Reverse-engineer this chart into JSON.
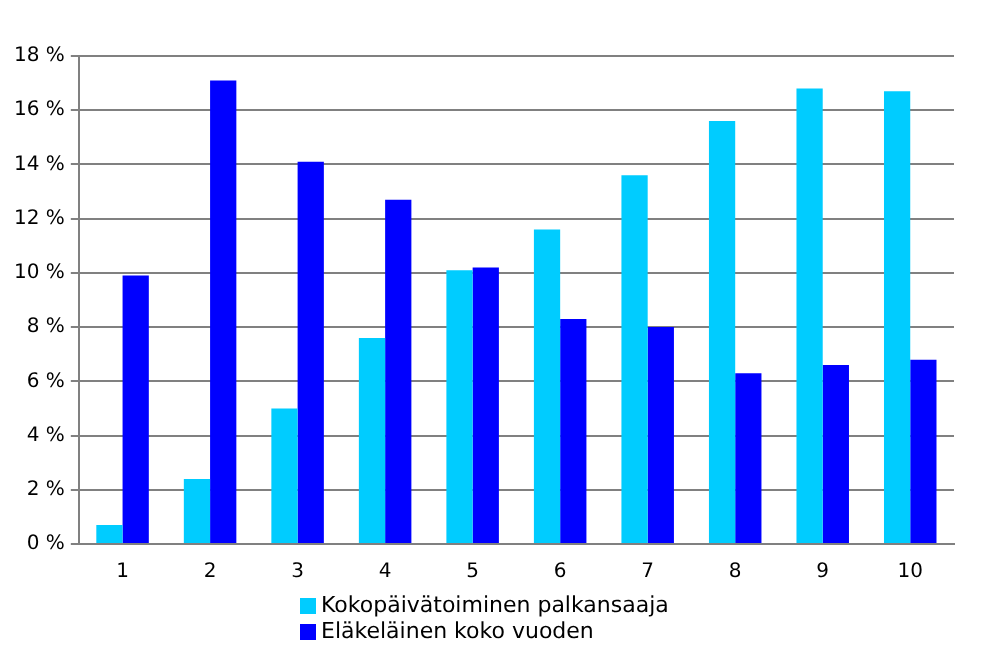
{
  "chart_data": {
    "type": "bar",
    "categories": [
      "1",
      "2",
      "3",
      "4",
      "5",
      "6",
      "7",
      "8",
      "9",
      "10"
    ],
    "series": [
      {
        "name": "Kokopäivätoiminen palkansaaja",
        "color": "#00ccff",
        "values": [
          0.7,
          2.4,
          5.0,
          7.6,
          10.1,
          11.6,
          13.6,
          15.6,
          16.8,
          16.7
        ]
      },
      {
        "name": "Eläkeläinen koko vuoden",
        "color": "#0000ff",
        "values": [
          9.9,
          17.1,
          14.1,
          12.7,
          10.2,
          8.3,
          8.0,
          6.3,
          6.6,
          6.8
        ]
      }
    ],
    "ylim": [
      0,
      18
    ],
    "yticks": [
      {
        "value": 0,
        "label": "0 %"
      },
      {
        "value": 2,
        "label": "2 %"
      },
      {
        "value": 4,
        "label": "4 %"
      },
      {
        "value": 6,
        "label": "6 %"
      },
      {
        "value": 8,
        "label": "8 %"
      },
      {
        "value": 10,
        "label": "10 %"
      },
      {
        "value": 12,
        "label": "12 %"
      },
      {
        "value": 14,
        "label": "14 %"
      },
      {
        "value": 16,
        "label": "16 %"
      },
      {
        "value": 18,
        "label": "18 %"
      }
    ],
    "grid": "y",
    "legend": "bottom"
  }
}
